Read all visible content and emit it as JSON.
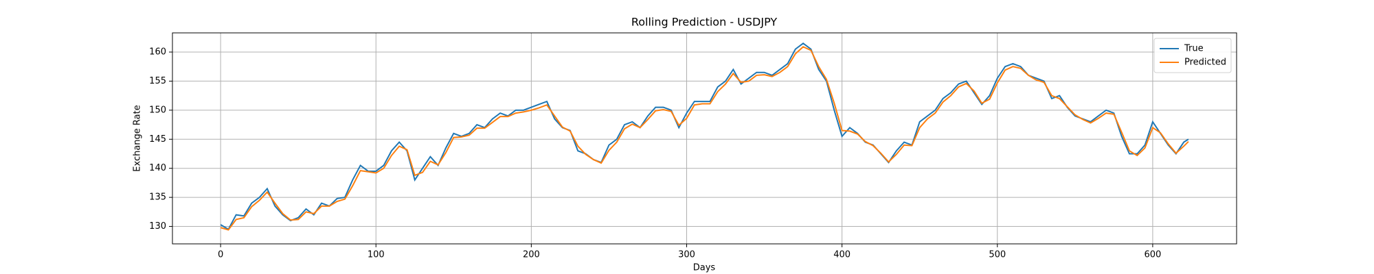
{
  "chart_data": {
    "type": "line",
    "title": "Rolling Prediction - USDJPY",
    "x_label": "Days",
    "y_label": "Exchange Rate",
    "x": [
      0,
      5,
      10,
      15,
      20,
      25,
      30,
      35,
      40,
      45,
      50,
      55,
      60,
      65,
      70,
      75,
      80,
      85,
      90,
      95,
      100,
      105,
      110,
      115,
      120,
      125,
      130,
      135,
      140,
      145,
      150,
      155,
      160,
      165,
      170,
      175,
      180,
      185,
      190,
      195,
      200,
      205,
      210,
      215,
      220,
      225,
      230,
      235,
      240,
      245,
      250,
      255,
      260,
      265,
      270,
      275,
      280,
      285,
      290,
      295,
      300,
      305,
      310,
      315,
      320,
      325,
      330,
      335,
      340,
      345,
      350,
      355,
      360,
      365,
      370,
      375,
      380,
      385,
      390,
      395,
      400,
      405,
      410,
      415,
      420,
      425,
      430,
      435,
      440,
      445,
      450,
      455,
      460,
      465,
      470,
      475,
      480,
      485,
      490,
      495,
      500,
      505,
      510,
      515,
      520,
      525,
      530,
      535,
      540,
      545,
      550,
      555,
      560,
      565,
      570,
      575,
      580,
      585,
      590,
      595,
      600,
      605,
      610,
      615,
      620,
      623
    ],
    "series": [
      {
        "name": "True",
        "color": "#1f77b4",
        "values": [
          130.3,
          129.5,
          132,
          131.8,
          134,
          135,
          136.5,
          133.5,
          132,
          131,
          131.5,
          133,
          132,
          134,
          133.5,
          134.8,
          135,
          138,
          140.5,
          139.5,
          139.5,
          140.5,
          143,
          144.5,
          143,
          138,
          140,
          142,
          140.5,
          143.5,
          146,
          145.5,
          146,
          147.5,
          147,
          148.5,
          149.5,
          149,
          150,
          150,
          150.5,
          151,
          151.5,
          148.5,
          147,
          146.5,
          143,
          142.5,
          141.5,
          141,
          144,
          145,
          147.5,
          148,
          147,
          149,
          150.5,
          150.5,
          150,
          147,
          149.5,
          151.5,
          151.5,
          151.5,
          154,
          155,
          157,
          154.5,
          155.5,
          156.5,
          156.5,
          156,
          157,
          158,
          160.5,
          161.5,
          160.5,
          157,
          155,
          150,
          145.5,
          147,
          146,
          144.5,
          144,
          142.5,
          141,
          143,
          144.5,
          144,
          148,
          149,
          150,
          152,
          153,
          154.5,
          155,
          153,
          151,
          152.5,
          155.5,
          157.5,
          158,
          157.5,
          156,
          155.5,
          155,
          152,
          152.5,
          150.5,
          149,
          148.5,
          148,
          149,
          150,
          149.5,
          145.5,
          142.5,
          142.5,
          144,
          148,
          146,
          144,
          142.5,
          144.5,
          145
        ]
      },
      {
        "name": "Predicted",
        "color": "#ff7f0e",
        "values": [
          129.8,
          129.4,
          131.2,
          131.5,
          133.4,
          134.5,
          135.9,
          134,
          132.2,
          131.1,
          131.2,
          132.5,
          132.2,
          133.5,
          133.5,
          134.3,
          134.7,
          137,
          139.6,
          139.4,
          139.2,
          140,
          142.2,
          143.8,
          143.2,
          138.8,
          139.3,
          141.2,
          140.6,
          142.7,
          145.3,
          145.4,
          145.7,
          146.9,
          146.9,
          147.9,
          148.9,
          148.9,
          149.5,
          149.7,
          150,
          150.4,
          150.9,
          149,
          147.1,
          146.4,
          143.8,
          142.4,
          141.5,
          140.9,
          143.1,
          144.5,
          146.8,
          147.6,
          147,
          148.4,
          149.9,
          150.1,
          149.8,
          147.4,
          148.6,
          150.9,
          151.1,
          151.1,
          153.2,
          154.5,
          156.3,
          154.8,
          155,
          156,
          156.1,
          155.8,
          156.5,
          157.5,
          159.7,
          160.9,
          160.3,
          157.5,
          155.3,
          151.2,
          146.5,
          146.4,
          145.9,
          144.6,
          143.9,
          142.6,
          141.1,
          142.4,
          144,
          143.9,
          147,
          148.5,
          149.5,
          151.4,
          152.5,
          154,
          154.6,
          153.3,
          151.2,
          151.9,
          154.7,
          156.9,
          157.5,
          157.2,
          156,
          155.2,
          154.8,
          152.5,
          152,
          150.6,
          149.2,
          148.4,
          147.8,
          148.6,
          149.5,
          149.3,
          146.2,
          143,
          142.2,
          143.5,
          147,
          146.1,
          144.2,
          142.6,
          143.8,
          144.6
        ]
      }
    ],
    "xlim": [
      -31,
      654
    ],
    "ylim": [
      127,
      163.3
    ],
    "xticks": [
      0,
      100,
      200,
      300,
      400,
      500,
      600
    ],
    "yticks": [
      130,
      135,
      140,
      145,
      150,
      155,
      160
    ],
    "grid": true,
    "legend": "upper right"
  }
}
